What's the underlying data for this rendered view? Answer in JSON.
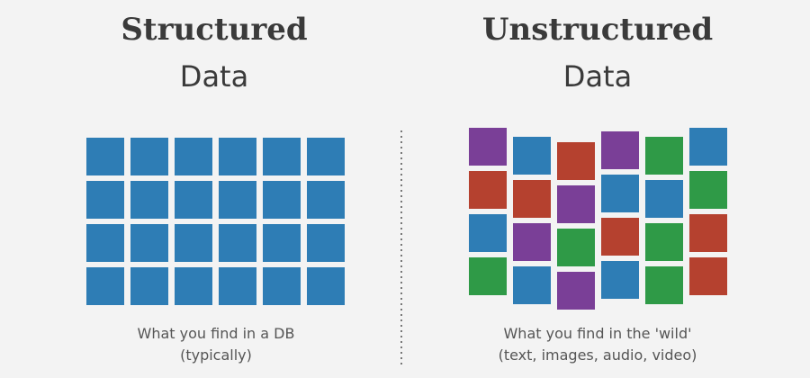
{
  "left": {
    "title": "Structured",
    "subtitle": "Data",
    "caption": [
      "What you find in a DB",
      "(typically)"
    ]
  },
  "right": {
    "title": "Unstructured",
    "subtitle": "Data",
    "caption": [
      "What you find in the 'wild'",
      "(text, images, audio, video)"
    ]
  }
}
